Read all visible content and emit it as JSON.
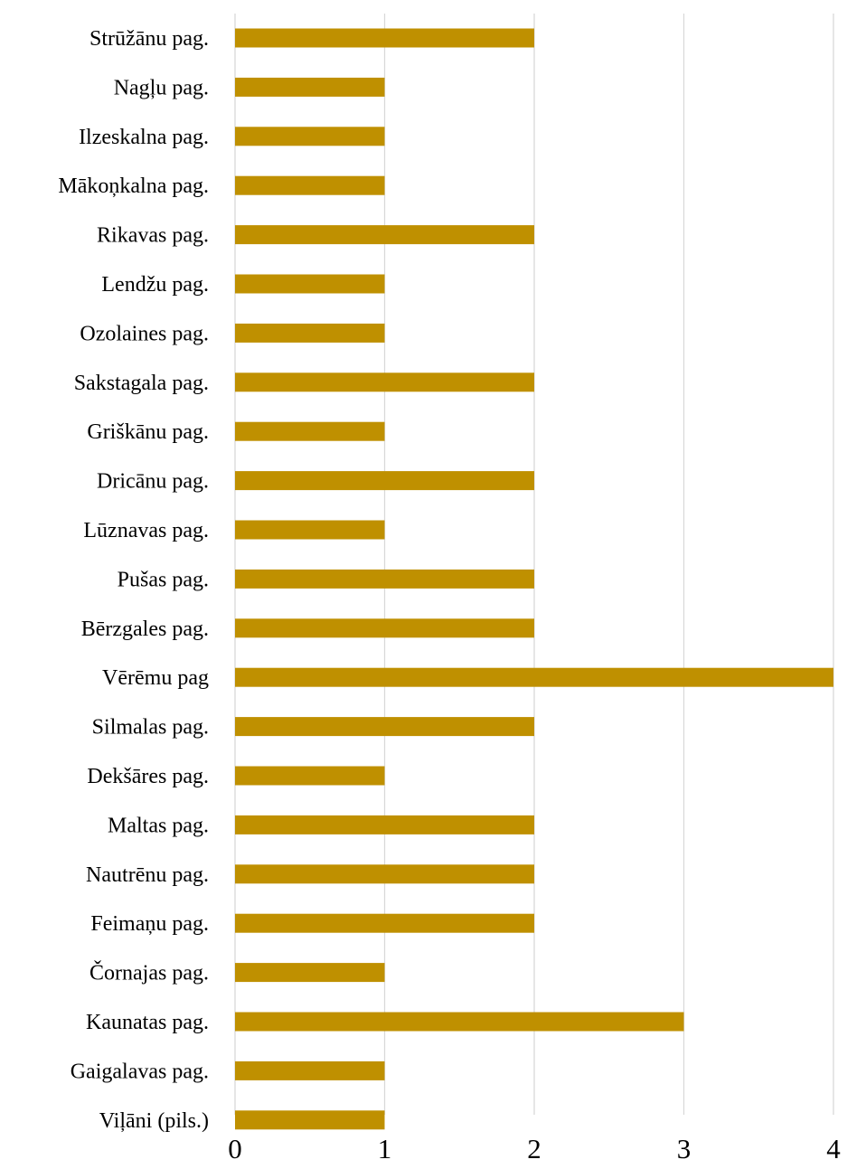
{
  "chart_data": {
    "type": "bar",
    "orientation": "horizontal",
    "categories": [
      "Strūžānu pag.",
      "Nagļu pag.",
      "Ilzeskalna pag.",
      "Mākoņkalna pag.",
      "Rikavas pag.",
      "Lendžu pag.",
      "Ozolaines pag.",
      "Sakstagala pag.",
      "Griškānu pag.",
      "Dricānu pag.",
      "Lūznavas pag.",
      "Pušas pag.",
      "Bērzgales pag.",
      "Vērēmu pag",
      "Silmalas pag.",
      "Dekšāres pag.",
      "Maltas pag.",
      "Nautrēnu pag.",
      "Feimaņu pag.",
      "Čornajas pag.",
      "Kaunatas pag.",
      "Gaigalavas pag.",
      "Viļāni (pils.)"
    ],
    "values": [
      2,
      1,
      1,
      1,
      2,
      1,
      1,
      2,
      1,
      2,
      1,
      2,
      2,
      4,
      2,
      1,
      2,
      2,
      2,
      1,
      3,
      1,
      1
    ],
    "xlim": [
      0,
      4
    ],
    "xticks": [
      "0",
      "1",
      "2",
      "3",
      "4"
    ],
    "grid": "vertical",
    "legend": "none",
    "bar_color": "#bf9000",
    "grid_color": "#d9d9d9"
  }
}
